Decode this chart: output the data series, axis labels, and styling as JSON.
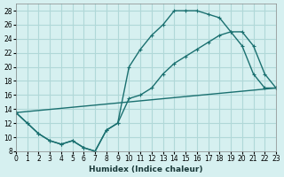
{
  "xlabel": "Humidex (Indice chaleur)",
  "bg_color": "#d6f0f0",
  "grid_color": "#b0d8d8",
  "line_color": "#1a7070",
  "xlim": [
    0,
    23
  ],
  "ylim": [
    8,
    29
  ],
  "xticks": [
    0,
    1,
    2,
    3,
    4,
    5,
    6,
    7,
    8,
    9,
    10,
    11,
    12,
    13,
    14,
    15,
    16,
    17,
    18,
    19,
    20,
    21,
    22,
    23
  ],
  "yticks": [
    8,
    10,
    12,
    14,
    16,
    18,
    20,
    22,
    24,
    26,
    28
  ],
  "line1_x": [
    0,
    1,
    2,
    3,
    4,
    5,
    6,
    7,
    8,
    9,
    10,
    11,
    12,
    13,
    14,
    15,
    16,
    17,
    18,
    19,
    20,
    21,
    22,
    23
  ],
  "line1_y": [
    13.5,
    12.0,
    10.5,
    9.5,
    9.0,
    9.5,
    8.5,
    8.0,
    11.0,
    12.0,
    20.0,
    22.5,
    24.5,
    26.0,
    28.0,
    28.0,
    28.0,
    27.5,
    27.0,
    25.0,
    23.0,
    19.0,
    17.0,
    17.0
  ],
  "line2_x": [
    0,
    1,
    2,
    3,
    4,
    5,
    6,
    7,
    8,
    9,
    10,
    11,
    12,
    13,
    14,
    15,
    16,
    17,
    18,
    19,
    20,
    21,
    22,
    23
  ],
  "line2_y": [
    13.5,
    12.0,
    10.5,
    9.5,
    9.0,
    9.5,
    8.5,
    8.0,
    11.0,
    12.0,
    15.5,
    16.0,
    17.0,
    19.0,
    20.5,
    21.5,
    22.5,
    23.5,
    24.5,
    25.0,
    25.0,
    23.0,
    19.0,
    17.0
  ],
  "line3_x": [
    0,
    23
  ],
  "line3_y": [
    13.5,
    17.0
  ]
}
